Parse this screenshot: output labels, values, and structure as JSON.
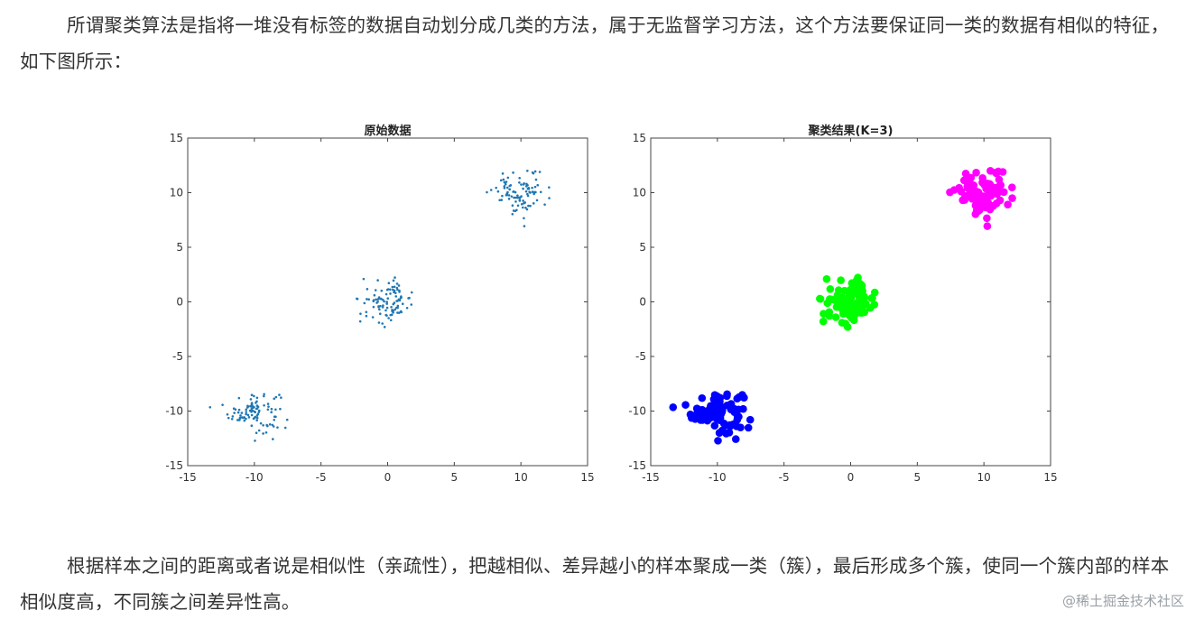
{
  "article": {
    "paragraph_1": "所谓聚类算法是指将一堆没有标签的数据自动划分成几类的方法，属于无监督学习方法，这个方法要保证同一类的数据有相似的特征，如下图所示：",
    "paragraph_2": "根据样本之间的距离或者说是相似性（亲疏性），把越相似、差异越小的样本聚成一类（簇），最后形成多个簇，使同一个簇内部的样本相似度高，不同簇之间差异性高。",
    "watermark": "@稀土掘金技术社区"
  },
  "chart_data": [
    {
      "type": "scatter",
      "title": "原始数据",
      "xlim": [
        -15,
        15
      ],
      "ylim": [
        -15,
        15
      ],
      "xticks": [
        "-15",
        "-10",
        "-5",
        "0",
        "5",
        "10",
        "15"
      ],
      "yticks": [
        "15",
        "10",
        "5",
        "0",
        "-5",
        "-10",
        "-15"
      ],
      "grid": false,
      "marker_color": "#1f77b4",
      "series": [
        {
          "center": [
            -10,
            -10
          ],
          "count": 100
        },
        {
          "center": [
            0,
            0
          ],
          "count": 100
        },
        {
          "center": [
            10,
            10
          ],
          "count": 100
        }
      ]
    },
    {
      "type": "scatter",
      "title": "聚类结果(K=3)",
      "xlim": [
        -15,
        15
      ],
      "ylim": [
        -15,
        15
      ],
      "xticks": [
        "-15",
        "-10",
        "-5",
        "0",
        "5",
        "10",
        "15"
      ],
      "yticks": [
        "15",
        "10",
        "5",
        "0",
        "-5",
        "-10",
        "-15"
      ],
      "grid": false,
      "series": [
        {
          "center": [
            -10,
            -10
          ],
          "count": 100,
          "color": "#0000ff"
        },
        {
          "center": [
            0,
            0
          ],
          "count": 100,
          "color": "#00ff00"
        },
        {
          "center": [
            10,
            10
          ],
          "count": 100,
          "color": "#ff00ff"
        }
      ]
    }
  ]
}
